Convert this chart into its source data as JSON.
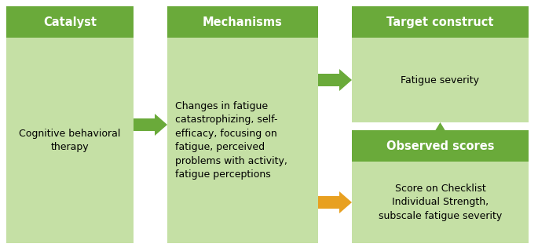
{
  "dark_green": "#6aaa3a",
  "light_green": "#c5e0a5",
  "orange": "#e8a020",
  "white": "#ffffff",
  "background": "#ffffff",
  "catalyst_header": "Catalyst",
  "catalyst_body": "Cognitive behavioral\ntherapy",
  "mechanisms_header": "Mechanisms",
  "mechanisms_body": "Changes in fatigue\ncatastrophizing, self-\nefficacy, focusing on\nfatigue, perceived\nproblems with activity,\nfatigue perceptions",
  "target_header": "Target construct",
  "target_body": "Fatigue severity",
  "observed_header": "Observed scores",
  "observed_body": "Score on Checklist\nIndividual Strength,\nsubscale fatigue severity",
  "font_size_header": 10.5,
  "font_size_body": 9.0
}
